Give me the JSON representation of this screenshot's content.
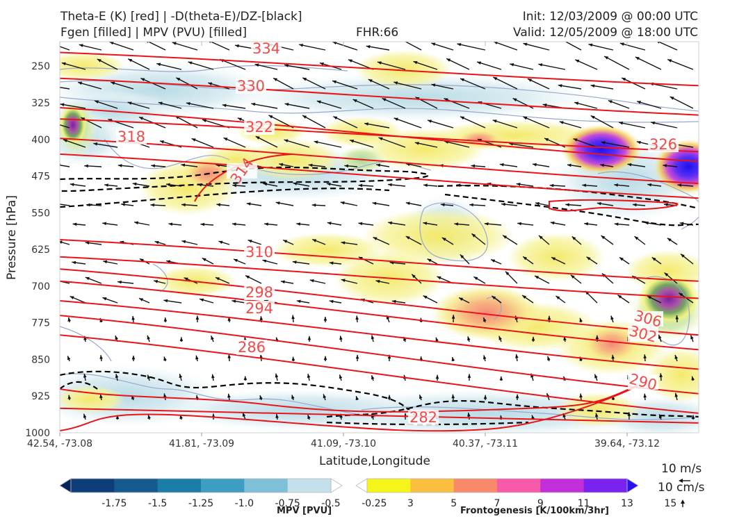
{
  "header": {
    "title_left_1": "Theta-E (K) [red] | -D(theta-E)/DZ-[black]",
    "title_left_2": "Fgen [filled] | MPV (PVU) [filled]",
    "fhr": "FHR:66",
    "init": "Init: 12/03/2009 @ 00:00 UTC",
    "valid": "Valid: 12/05/2009 @ 18:00 UTC"
  },
  "chart_data": {
    "type": "cross-section",
    "xlabel": "Latitude,Longitude",
    "ylabel": "Pressure [hPa]",
    "ylim": [
      1000,
      200
    ],
    "y_ticks": [
      250,
      325,
      400,
      475,
      550,
      625,
      700,
      775,
      850,
      925,
      1000
    ],
    "x_ticks": [
      "42.54, -73.08",
      "41.81, -73.09",
      "41.09, -73.10",
      "40.37, -73.11",
      "39.64, -73.12"
    ],
    "theta_e_contours": [
      {
        "label": "334",
        "p_at_left": 222,
        "p_at_right": 290
      },
      {
        "label": "330",
        "p_at_left": 275,
        "p_at_right": 350
      },
      {
        "label": "326",
        "p_at_left": 335,
        "p_at_right": 445
      },
      {
        "label": "322",
        "p_at_left": 358,
        "p_at_right": 425
      },
      {
        "label": "318",
        "p_at_left": 398,
        "p_at_right": 490
      },
      {
        "label": "314",
        "p_at_left": 430,
        "p_at_right": 520
      },
      {
        "label": "310",
        "p_at_left": 605,
        "p_at_right": 690
      },
      {
        "label": "306",
        "p_at_left": 640,
        "p_at_right": 725
      },
      {
        "label": "302",
        "p_at_left": 665,
        "p_at_right": 800
      },
      {
        "label": "298",
        "p_at_left": 690,
        "p_at_right": 830
      },
      {
        "label": "294",
        "p_at_left": 730,
        "p_at_right": 870
      },
      {
        "label": "290",
        "p_at_left": 760,
        "p_at_right": 920
      },
      {
        "label": "286",
        "p_at_left": 800,
        "p_at_right": 960
      },
      {
        "label": "282",
        "p_at_left": 950,
        "p_at_right": 980
      }
    ],
    "legend_mpv": {
      "label": "MPV [PVU]",
      "levels": [
        "-1.75",
        "-1.5",
        "-1.25",
        "-1.0",
        "-0.75",
        "-0.5",
        "-0.25"
      ],
      "colors": [
        "#08245e",
        "#0f3d78",
        "#145a8d",
        "#1b7ea8",
        "#3d9dc2",
        "#80bfd8",
        "#c4e0ea",
        "#ffffff"
      ]
    },
    "legend_fgen": {
      "label": "Frontogenesis [K/100km/3hr]",
      "levels": [
        "3",
        "5",
        "7",
        "9",
        "11",
        "13",
        "15"
      ],
      "colors": [
        "#ffffff",
        "#f5f51a",
        "#fbbf40",
        "#f88a6a",
        "#f75aa8",
        "#c02fd8",
        "#7a22f0",
        "#2a10f5"
      ]
    },
    "wind_key": {
      "horizontal": "10 m/s",
      "vertical": "10 cm/s"
    }
  }
}
